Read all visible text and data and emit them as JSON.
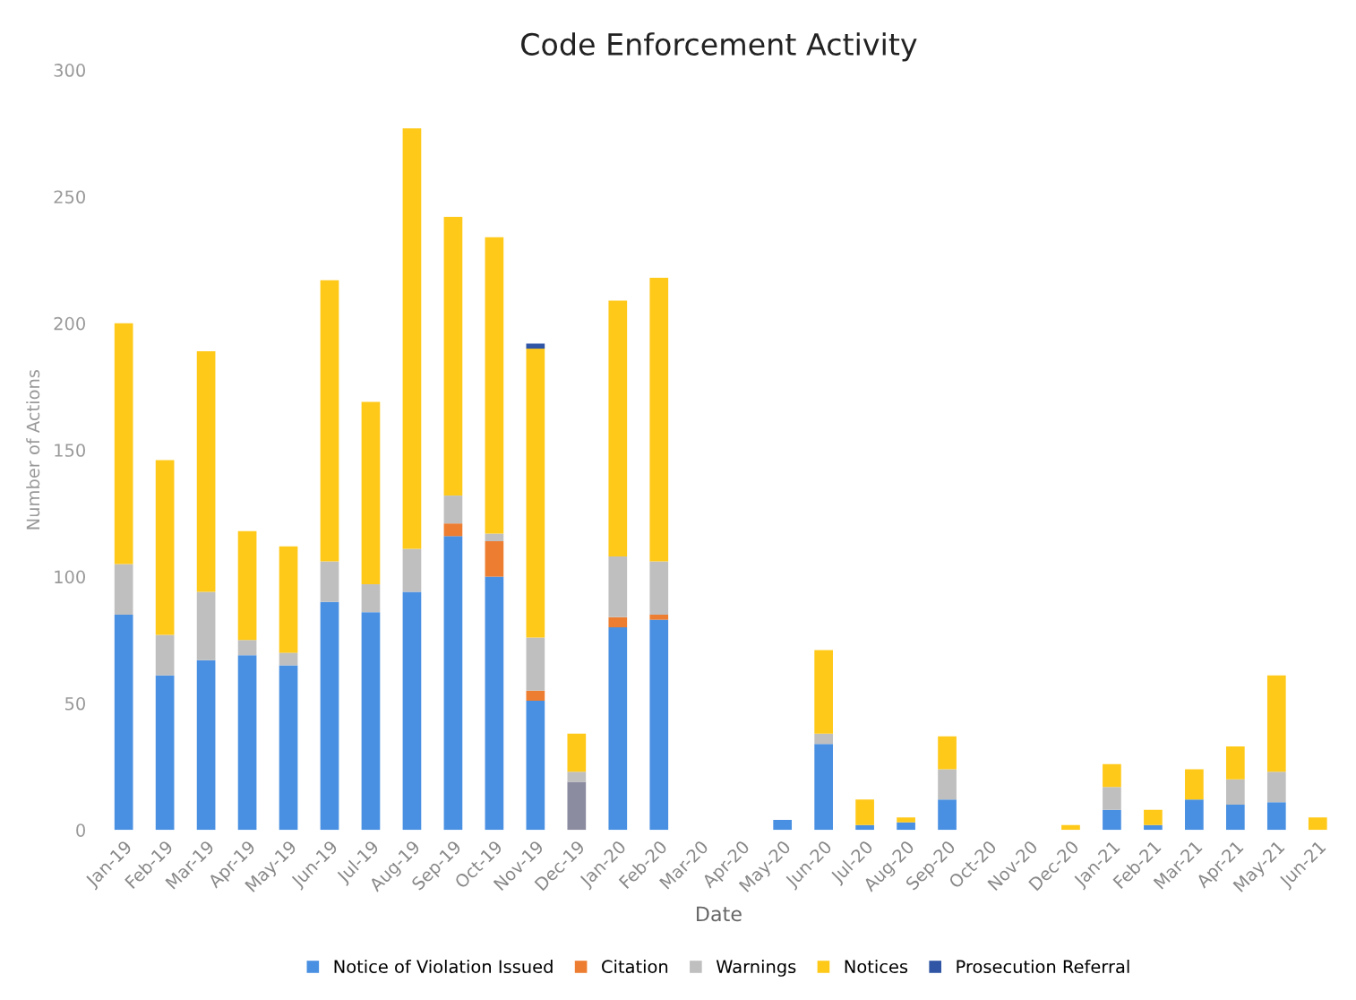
{
  "chart_data": {
    "type": "bar",
    "title": "Code Enforcement Activity",
    "xlabel": "Date",
    "ylabel": "Number of Actions",
    "stacked": true,
    "categories": [
      "Jan-19",
      "Feb-19",
      "Mar-19",
      "Apr-19",
      "May-19",
      "Jun-19",
      "Jul-19",
      "Aug-19",
      "Sep-19",
      "Oct-19",
      "Nov-19",
      "Dec-19",
      "Jan-20",
      "Feb-20",
      "Mar-20",
      "Apr-20",
      "May-20",
      "Jun-20",
      "Jul-20",
      "Aug-20",
      "Sep-20",
      "Oct-20",
      "Nov-20",
      "Dec-20",
      "Jan-21",
      "Feb-21",
      "Mar-21",
      "Apr-21",
      "May-21",
      "Jun-21"
    ],
    "series": [
      {
        "color": "#8c8ca0",
        "values": [
          0,
          0,
          0,
          0,
          0,
          0,
          0,
          0,
          0,
          0,
          0,
          19,
          0,
          0,
          0,
          0,
          0,
          0,
          0,
          0,
          0,
          0,
          0,
          0,
          0,
          0,
          0,
          0,
          0,
          0
        ]
      },
      {
        "name": "Notice of Violation Issued",
        "color": "#4a90e2",
        "values": [
          85,
          61,
          67,
          69,
          65,
          90,
          86,
          94,
          116,
          100,
          51,
          0,
          80,
          83,
          0,
          0,
          4,
          34,
          2,
          3,
          12,
          0,
          0,
          0,
          8,
          2,
          12,
          10,
          11,
          0
        ]
      },
      {
        "name": "Citation",
        "color": "#ed7d31",
        "values": [
          0,
          0,
          0,
          0,
          0,
          0,
          0,
          0,
          5,
          14,
          4,
          0,
          4,
          2,
          0,
          0,
          0,
          0,
          0,
          0,
          0,
          0,
          0,
          0,
          0,
          0,
          0,
          0,
          0,
          0
        ]
      },
      {
        "name": "Warnings",
        "color": "#bfbfbf",
        "values": [
          20,
          16,
          27,
          6,
          5,
          16,
          11,
          17,
          11,
          3,
          21,
          4,
          24,
          21,
          0,
          0,
          0,
          4,
          0,
          0,
          12,
          0,
          0,
          null,
          9,
          0,
          0,
          10,
          12,
          0
        ]
      },
      {
        "name": "Notices",
        "color": "#ffc91a",
        "values": [
          95,
          69,
          95,
          43,
          42,
          111,
          72,
          166,
          110,
          117,
          114,
          15,
          101,
          112,
          0,
          0,
          0,
          33,
          10,
          2,
          13,
          0,
          0,
          2,
          9,
          6,
          12,
          13,
          38,
          5
        ]
      },
      {
        "name": "Prosecution Referral",
        "color": "#2f55a4",
        "values": [
          0,
          0,
          0,
          0,
          0,
          0,
          0,
          0,
          0,
          0,
          2,
          0,
          0,
          0,
          0,
          0,
          0,
          0,
          0,
          0,
          0,
          0,
          0,
          0,
          0,
          0,
          0,
          0,
          0,
          0
        ]
      }
    ],
    "ylim": [
      0,
      300
    ],
    "yticks": [
      0,
      50,
      100,
      150,
      200,
      250,
      300
    ],
    "legend": "bottom",
    "grid": false
  }
}
